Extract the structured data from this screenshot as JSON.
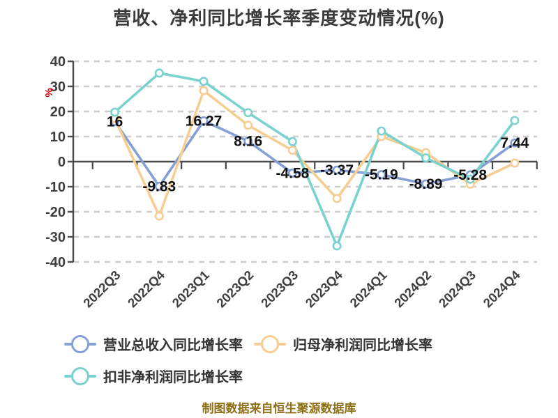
{
  "title": "营收、净利同比增长率季度变动情况(%)",
  "y_axis_name": "%",
  "footer": "制图数据来自恒生聚源数据库",
  "chart_data": {
    "type": "line",
    "title": "营收、净利同比增长率季度变动情况(%)",
    "categories": [
      "2022Q3",
      "2022Q4",
      "2023Q1",
      "2023Q2",
      "2023Q3",
      "2023Q4",
      "2024Q1",
      "2024Q2",
      "2024Q3",
      "2024Q4"
    ],
    "series": [
      {
        "name": "营业总收入同比增长率",
        "color": "#84a0d4",
        "values": [
          16,
          -9.83,
          16.27,
          8.16,
          -4.58,
          -3.37,
          -5.19,
          -8.89,
          -5.28,
          7.44
        ],
        "labels": [
          "16",
          "-9.83",
          "16.27",
          "8.16",
          "-4.58",
          "-3.37",
          "-5.19",
          "-8.89",
          "-5.28",
          "7.44"
        ],
        "show_labels": true
      },
      {
        "name": "归母净利润同比增长率",
        "color": "#f6cd92",
        "values": [
          17.2,
          -21.7,
          28.3,
          14.5,
          4.5,
          -14.7,
          10,
          3.6,
          -9,
          -0.6
        ],
        "show_labels": false
      },
      {
        "name": "扣非净利润同比增长率",
        "color": "#79d2ce",
        "values": [
          19.7,
          35.3,
          32,
          19.5,
          8,
          -33.6,
          12.2,
          1.5,
          -7,
          16.4
        ],
        "show_labels": false
      }
    ],
    "xlabel": "",
    "ylabel": "%",
    "ylim": [
      -40,
      40
    ],
    "y_ticks": [
      40,
      30,
      20,
      10,
      0,
      -10,
      -20,
      -30,
      -40
    ],
    "grid": true,
    "grid_style": "dashed",
    "legend_position": "bottom"
  },
  "colors": {
    "background": "#ffffff",
    "grid": "#cdcdcd",
    "axis": "#4a4a4a",
    "tick_text": "#3f3f3f",
    "data_label": "#111111",
    "title_text": "#3a3a3a",
    "legend_text": "#333333",
    "footer_text": "#8f6f16",
    "y_axis_name": "#d40000"
  }
}
